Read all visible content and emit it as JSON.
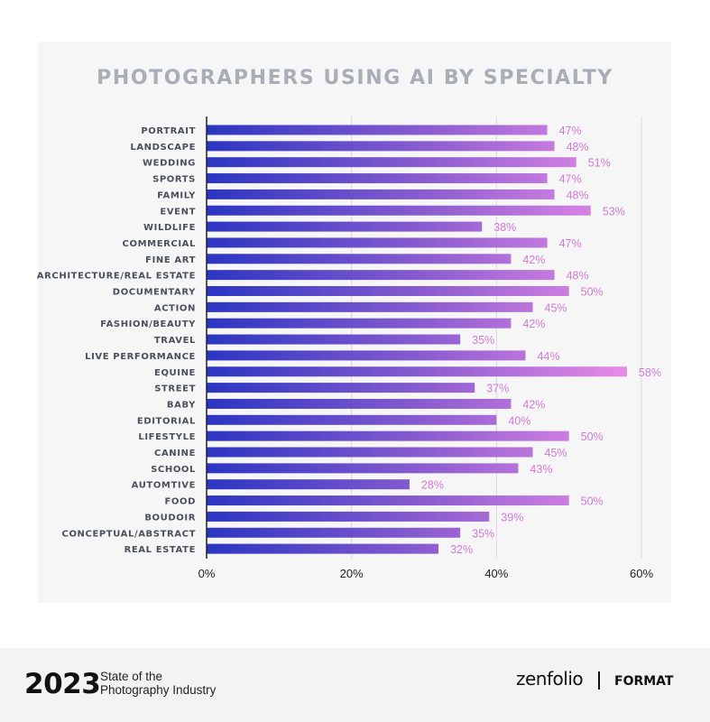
{
  "chart_data": {
    "type": "bar",
    "orientation": "horizontal",
    "title": "PHOTOGRAPHERS USING AI BY SPECIALTY",
    "categories": [
      "PORTRAIT",
      "LANDSCAPE",
      "WEDDING",
      "SPORTS",
      "FAMILY",
      "EVENT",
      "WILDLIFE",
      "COMMERCIAL",
      "FINE ART",
      "ARCHITECTURE/REAL ESTATE",
      "DOCUMENTARY",
      "ACTION",
      "FASHION/BEAUTY",
      "TRAVEL",
      "LIVE PERFORMANCE",
      "EQUINE",
      "STREET",
      "BABY",
      "EDITORIAL",
      "LIFESTYLE",
      "CANINE",
      "SCHOOL",
      "AUTOMTIVE",
      "FOOD",
      "BOUDOIR",
      "CONCEPTUAL/ABSTRACT",
      "REAL ESTATE"
    ],
    "values": [
      47,
      48,
      51,
      47,
      48,
      53,
      38,
      47,
      42,
      48,
      50,
      45,
      42,
      35,
      44,
      58,
      37,
      42,
      40,
      50,
      45,
      43,
      28,
      50,
      39,
      35,
      32
    ],
    "value_labels": [
      "47%",
      "48%",
      "51%",
      "47%",
      "48%",
      "53%",
      "38%",
      "47%",
      "42%",
      "48%",
      "50%",
      "45%",
      "42%",
      "35%",
      "44%",
      "58%",
      "37%",
      "42%",
      "40%",
      "50%",
      "45%",
      "43%",
      "28%",
      "50%",
      "39%",
      "35%",
      "32%"
    ],
    "xlim": [
      0,
      60
    ],
    "xticks": [
      0,
      20,
      40,
      60
    ],
    "xtick_labels": [
      "0%",
      "20%",
      "40%",
      "60%"
    ],
    "grid": true,
    "colors": {
      "bar_start": "#2b35c2",
      "bar_mid": "#8a5cd0",
      "bar_end": "#ee8ee8",
      "value_label": "#d07ad4",
      "category_label": "#4a4f5a",
      "grid": "#d8d8d8",
      "axis": "#222222"
    }
  },
  "footer": {
    "year": "2023",
    "report_line1": "State of the",
    "report_line2": "Photography Industry",
    "brand_primary": "zenfolio",
    "brand_secondary": "FORMAT"
  }
}
